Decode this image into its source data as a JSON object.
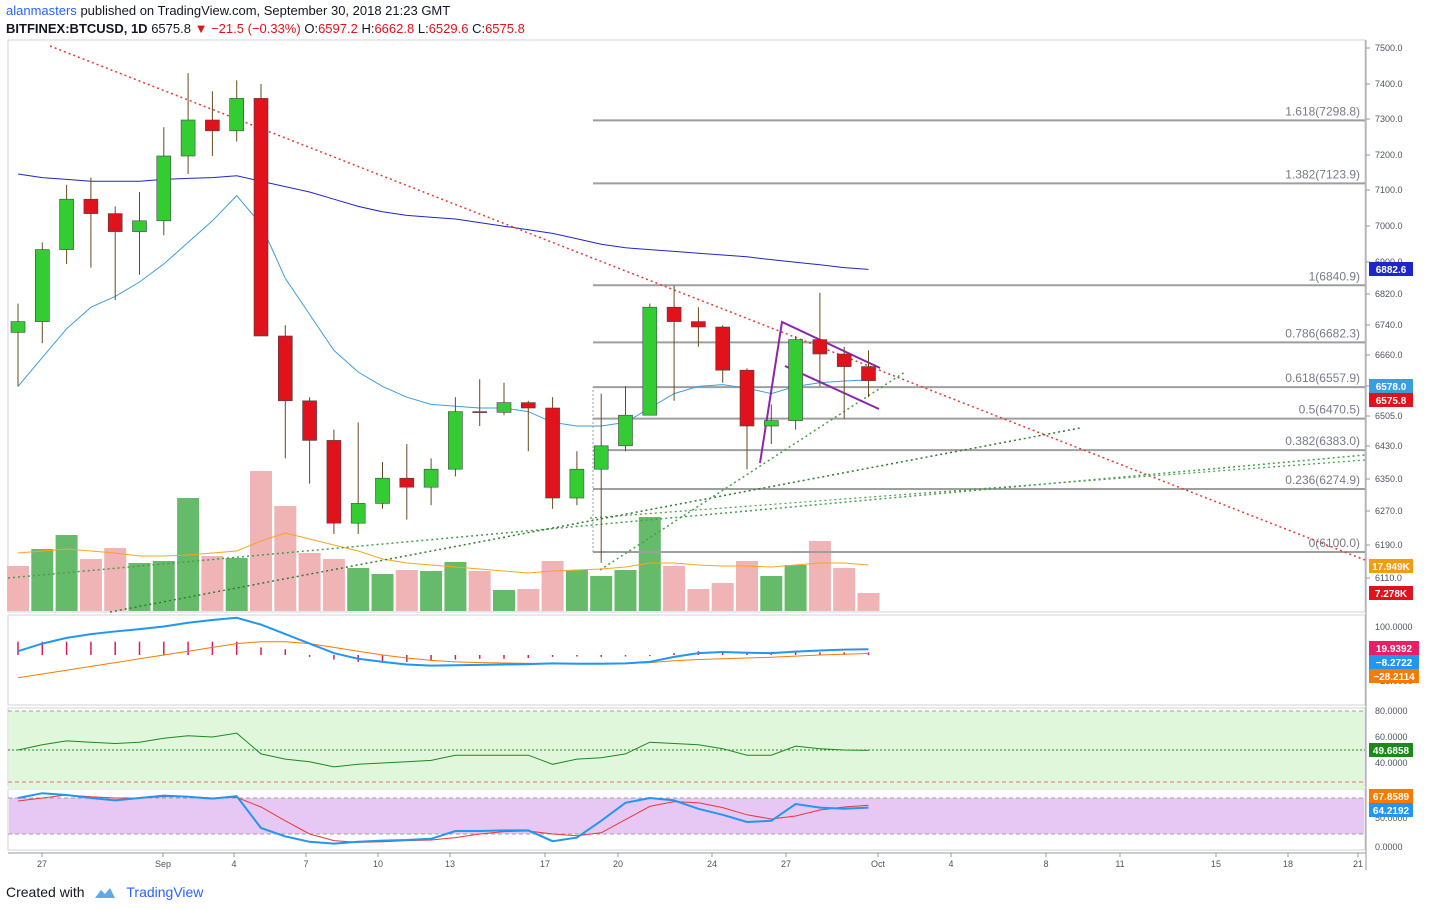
{
  "header": {
    "author": "alanmasters",
    "published_text": "published on TradingView.com, September 30, 2018 21:23 GMT",
    "symbol": "BITFINEX:BTCUSD, 1D",
    "last": "6575.8",
    "change": "−21.5 (−0.33%)",
    "o_label": "O:",
    "o": "6597.2",
    "h_label": "H:",
    "h": "6662.8",
    "l_label": "L:",
    "l": "6529.6",
    "c_label": "C:",
    "c": "6575.8"
  },
  "footer": {
    "created_with": "Created with",
    "brand": "TradingView"
  },
  "colors": {
    "up": "#33cc33",
    "down": "#e0121b",
    "up_vol": "#66bb6a",
    "down_vol": "#f0b3b6",
    "ma_slow": "#1e26c8",
    "ma_fast": "#3a9ede",
    "fib": "#9e9e9e",
    "trend_red": "#e53935",
    "trend_green": "#43a047",
    "wedge": "#8e24aa"
  },
  "chart_data": {
    "type": "candlestick",
    "price_axis": {
      "range": [
        6000,
        7500
      ],
      "ticks": [
        "7500.0",
        "7400.0",
        "7300.0",
        "7200.0",
        "7100.0",
        "7000.0",
        "6900.0",
        "6820.0",
        "6740.0",
        "6660.0",
        "6580.0",
        "6505.0",
        "6430.0",
        "6350.0",
        "6270.0",
        "6190.0",
        "6110.0"
      ]
    },
    "time_axis": {
      "labels": [
        "27",
        "Sep",
        "4",
        "7",
        "10",
        "13",
        "17",
        "20",
        "24",
        "27",
        "Oct",
        "4",
        "8",
        "11",
        "15",
        "18",
        "21"
      ]
    },
    "candles": [
      {
        "o": 6710,
        "h": 6790,
        "l": 6560,
        "c": 6740
      },
      {
        "o": 6740,
        "h": 6960,
        "l": 6680,
        "c": 6940
      },
      {
        "o": 6940,
        "h": 7120,
        "l": 6900,
        "c": 7080
      },
      {
        "o": 7080,
        "h": 7140,
        "l": 6890,
        "c": 7040
      },
      {
        "o": 7040,
        "h": 7060,
        "l": 6800,
        "c": 6990
      },
      {
        "o": 6990,
        "h": 7100,
        "l": 6870,
        "c": 7020
      },
      {
        "o": 7020,
        "h": 7280,
        "l": 6980,
        "c": 7200
      },
      {
        "o": 7200,
        "h": 7430,
        "l": 7150,
        "c": 7300
      },
      {
        "o": 7300,
        "h": 7380,
        "l": 7200,
        "c": 7270
      },
      {
        "o": 7270,
        "h": 7410,
        "l": 7240,
        "c": 7360
      },
      {
        "o": 7360,
        "h": 7400,
        "l": 6700,
        "c": 6700
      },
      {
        "o": 6700,
        "h": 6730,
        "l": 6360,
        "c": 6520
      },
      {
        "o": 6520,
        "h": 6530,
        "l": 6290,
        "c": 6410
      },
      {
        "o": 6410,
        "h": 6440,
        "l": 6150,
        "c": 6180
      },
      {
        "o": 6180,
        "h": 6460,
        "l": 6150,
        "c": 6235
      },
      {
        "o": 6235,
        "h": 6350,
        "l": 6220,
        "c": 6305
      },
      {
        "o": 6305,
        "h": 6400,
        "l": 6190,
        "c": 6280
      },
      {
        "o": 6280,
        "h": 6360,
        "l": 6230,
        "c": 6330
      },
      {
        "o": 6330,
        "h": 6530,
        "l": 6310,
        "c": 6490
      },
      {
        "o": 6490,
        "h": 6580,
        "l": 6450,
        "c": 6488
      },
      {
        "o": 6488,
        "h": 6570,
        "l": 6480,
        "c": 6515
      },
      {
        "o": 6515,
        "h": 6520,
        "l": 6380,
        "c": 6500
      },
      {
        "o": 6500,
        "h": 6530,
        "l": 6220,
        "c": 6250
      },
      {
        "o": 6250,
        "h": 6380,
        "l": 6230,
        "c": 6330
      },
      {
        "o": 6330,
        "h": 6540,
        "l": 6070,
        "c": 6395
      },
      {
        "o": 6395,
        "h": 6560,
        "l": 6380,
        "c": 6480
      },
      {
        "o": 6480,
        "h": 6790,
        "l": 6480,
        "c": 6780
      },
      {
        "o": 6780,
        "h": 6840,
        "l": 6520,
        "c": 6740
      },
      {
        "o": 6740,
        "h": 6780,
        "l": 6670,
        "c": 6725
      },
      {
        "o": 6725,
        "h": 6730,
        "l": 6570,
        "c": 6605
      },
      {
        "o": 6605,
        "h": 6610,
        "l": 6330,
        "c": 6450
      },
      {
        "o": 6450,
        "h": 6510,
        "l": 6400,
        "c": 6465
      },
      {
        "o": 6465,
        "h": 6700,
        "l": 6440,
        "c": 6690
      },
      {
        "o": 6690,
        "h": 6820,
        "l": 6560,
        "c": 6650
      },
      {
        "o": 6650,
        "h": 6670,
        "l": 6470,
        "c": 6615
      },
      {
        "o": 6615,
        "h": 6660,
        "l": 6530,
        "c": 6576
      }
    ],
    "volume": [
      {
        "v": 0.45,
        "up": false
      },
      {
        "v": 0.62,
        "up": true
      },
      {
        "v": 0.76,
        "up": true
      },
      {
        "v": 0.52,
        "up": false
      },
      {
        "v": 0.63,
        "up": false
      },
      {
        "v": 0.48,
        "up": true
      },
      {
        "v": 0.5,
        "up": true
      },
      {
        "v": 1.13,
        "up": true
      },
      {
        "v": 0.55,
        "up": false
      },
      {
        "v": 0.53,
        "up": true
      },
      {
        "v": 1.4,
        "up": false
      },
      {
        "v": 1.05,
        "up": false
      },
      {
        "v": 0.58,
        "up": false
      },
      {
        "v": 0.52,
        "up": false
      },
      {
        "v": 0.43,
        "up": true
      },
      {
        "v": 0.37,
        "up": true
      },
      {
        "v": 0.41,
        "up": false
      },
      {
        "v": 0.4,
        "up": true
      },
      {
        "v": 0.49,
        "up": true
      },
      {
        "v": 0.4,
        "up": false
      },
      {
        "v": 0.21,
        "up": true
      },
      {
        "v": 0.22,
        "up": false
      },
      {
        "v": 0.5,
        "up": false
      },
      {
        "v": 0.41,
        "up": true
      },
      {
        "v": 0.35,
        "up": true
      },
      {
        "v": 0.41,
        "up": true
      },
      {
        "v": 0.94,
        "up": true
      },
      {
        "v": 0.45,
        "up": false
      },
      {
        "v": 0.22,
        "up": false
      },
      {
        "v": 0.28,
        "up": false
      },
      {
        "v": 0.5,
        "up": false
      },
      {
        "v": 0.35,
        "up": true
      },
      {
        "v": 0.46,
        "up": true
      },
      {
        "v": 0.7,
        "up": false
      },
      {
        "v": 0.43,
        "up": false
      },
      {
        "v": 0.18,
        "up": false
      }
    ],
    "ma_slow": [
      7150,
      7140,
      7135,
      7130,
      7130,
      7130,
      7135,
      7138,
      7140,
      7145,
      7130,
      7115,
      7100,
      7080,
      7060,
      7045,
      7035,
      7030,
      7025,
      7015,
      7005,
      6995,
      6985,
      6970,
      6955,
      6945,
      6940,
      6935,
      6930,
      6925,
      6920,
      6912,
      6905,
      6898,
      6890,
      6885
    ],
    "ma_fast": [
      6560,
      6640,
      6720,
      6780,
      6810,
      6850,
      6900,
      6960,
      7020,
      7090,
      7010,
      6860,
      6760,
      6660,
      6600,
      6560,
      6530,
      6510,
      6505,
      6500,
      6500,
      6490,
      6460,
      6450,
      6450,
      6460,
      6500,
      6540,
      6560,
      6565,
      6555,
      6540,
      6560,
      6570,
      6575,
      6578
    ],
    "fib_levels": [
      {
        "ratio": "1.618",
        "value": 7298.8,
        "label": "1.618(7298.8)"
      },
      {
        "ratio": "1.382",
        "value": 7123.9,
        "label": "1.382(7123.9)"
      },
      {
        "ratio": "1",
        "value": 6840.9,
        "label": "1(6840.9)"
      },
      {
        "ratio": "0.786",
        "value": 6682.3,
        "label": "0.786(6682.3)"
      },
      {
        "ratio": "0.618",
        "value": 6557.9,
        "label": "0.618(6557.9)"
      },
      {
        "ratio": "0.5",
        "value": 6470.5,
        "label": "0.5(6470.5)"
      },
      {
        "ratio": "0.382",
        "value": 6383.0,
        "label": "0.382(6383.0)"
      },
      {
        "ratio": "0.236",
        "value": 6274.9,
        "label": "0.236(6274.9)"
      },
      {
        "ratio": "0",
        "value": 6100.0,
        "label": "0(6100.0)"
      }
    ],
    "price_badges": [
      {
        "text": "6882.6",
        "value": 6882.6,
        "color": "#1e26c8"
      },
      {
        "text": "6578.0",
        "value": 6578.0,
        "color": "#3a9ede"
      },
      {
        "text": "6575.8",
        "value": 6575.8,
        "color": "#e0121b"
      },
      {
        "text": "17.949K",
        "value": 17.949,
        "color": "#f39c12"
      },
      {
        "text": "7.278K",
        "value": 7.278,
        "color": "#e0121b"
      }
    ],
    "macd": {
      "axis_ticks": [
        "100.0000",
        "−28.0000"
      ],
      "badges": [
        {
          "text": "19.9392",
          "color": "#e91e63"
        },
        {
          "text": "−8.2722",
          "color": "#2196f3"
        },
        {
          "text": "−28.2114",
          "color": "#f57c00"
        }
      ],
      "macd_line": [
        10,
        30,
        45,
        55,
        62,
        68,
        75,
        85,
        92,
        98,
        80,
        55,
        30,
        5,
        -10,
        -18,
        -25,
        -28,
        -27,
        -26,
        -25,
        -24,
        -22,
        -23,
        -23,
        -22,
        -18,
        -5,
        5,
        8,
        6,
        5,
        9,
        12,
        14,
        15
      ],
      "signal_line": [
        -60,
        -50,
        -40,
        -30,
        -20,
        -10,
        0,
        10,
        20,
        30,
        35,
        35,
        30,
        20,
        10,
        0,
        -8,
        -14,
        -18,
        -20,
        -21,
        -22,
        -22,
        -22,
        -22,
        -22,
        -20,
        -15,
        -12,
        -10,
        -8,
        -6,
        -3,
        0,
        2,
        4
      ],
      "histogram": [
        35,
        35,
        35,
        35,
        35,
        35,
        35,
        35,
        35,
        35,
        20,
        15,
        -5,
        -12,
        -18,
        -20,
        -18,
        -15,
        -12,
        -10,
        -10,
        -8,
        -5,
        -4,
        -5,
        -4,
        -3,
        5,
        10,
        10,
        8,
        7,
        7,
        7,
        7,
        7
      ]
    },
    "rsi": {
      "axis_ticks": [
        "80.0000",
        "60.0000",
        "40.0000"
      ],
      "badge": {
        "text": "49.6858",
        "color": "#1b8a1b"
      },
      "values": [
        50,
        54,
        57,
        56,
        55,
        56,
        59,
        61,
        60,
        63,
        47,
        43,
        41,
        37,
        39,
        40,
        41,
        42,
        46,
        46,
        46,
        46,
        39,
        43,
        44,
        47,
        56,
        55,
        54,
        51,
        46,
        46,
        53,
        51,
        50,
        49.7
      ]
    },
    "stoch": {
      "axis_ticks": [
        "50.0000",
        "0.0000"
      ],
      "badges": [
        {
          "text": "67.8589",
          "color": "#f57c00"
        },
        {
          "text": "64.2192",
          "color": "#2196f3"
        }
      ],
      "k": [
        80,
        88,
        85,
        80,
        76,
        80,
        84,
        82,
        79,
        83,
        30,
        16,
        7,
        4,
        7,
        9,
        10,
        12,
        25,
        25,
        26,
        26,
        8,
        14,
        42,
        72,
        80,
        76,
        62,
        52,
        40,
        42,
        70,
        64,
        62,
        64
      ],
      "d": [
        75,
        80,
        85,
        82,
        80,
        80,
        82,
        82,
        80,
        81,
        65,
        42,
        20,
        9,
        6,
        7,
        9,
        10,
        14,
        20,
        24,
        25,
        20,
        17,
        22,
        44,
        66,
        74,
        72,
        64,
        52,
        45,
        50,
        60,
        65,
        67.9
      ]
    }
  }
}
